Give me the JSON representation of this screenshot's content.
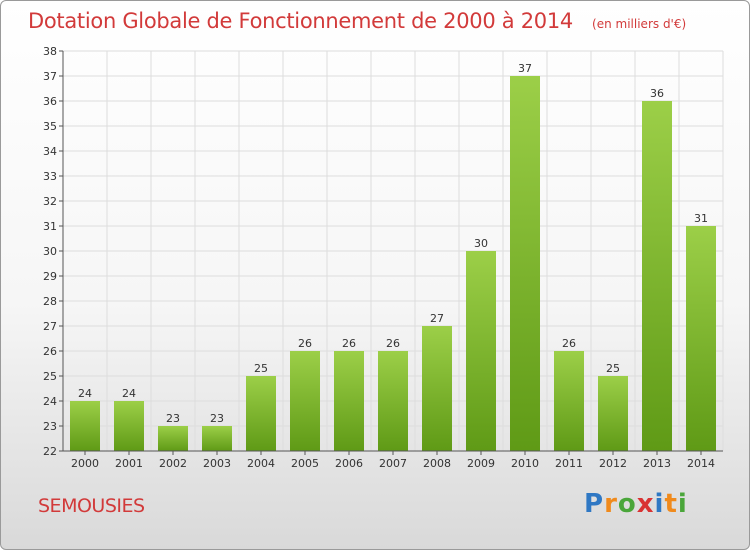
{
  "header": {
    "title": "Dotation Globale de Fonctionnement de 2000 à 2014",
    "subtitle": "(en milliers d'€)"
  },
  "footer": {
    "town": "SEMOUSIES",
    "logo_parts": [
      "P",
      "r",
      "o",
      "x",
      "i",
      "t",
      "i"
    ]
  },
  "colors": {
    "bar_top": "#9ccf48",
    "bar_bottom": "#5f9a16",
    "title": "#d23a3a",
    "grid": "#dddddd"
  },
  "chart_data": {
    "type": "bar",
    "title": "Dotation Globale de Fonctionnement de 2000 à 2014",
    "subtitle": "(en milliers d'€)",
    "categories": [
      "2000",
      "2001",
      "2002",
      "2003",
      "2004",
      "2005",
      "2006",
      "2007",
      "2008",
      "2009",
      "2010",
      "2011",
      "2012",
      "2013",
      "2014"
    ],
    "values": [
      24,
      24,
      23,
      23,
      25,
      26,
      26,
      26,
      27,
      30,
      37,
      26,
      25,
      36,
      31
    ],
    "data_labels": [
      "24",
      "24",
      "23",
      "23",
      "25",
      "26",
      "26",
      "26",
      "27",
      "30",
      "37",
      "26",
      "25",
      "36",
      "31"
    ],
    "ylim": [
      22,
      38
    ],
    "yticks": [
      "22",
      "23",
      "24",
      "25",
      "26",
      "27",
      "28",
      "29",
      "30",
      "31",
      "32",
      "33",
      "34",
      "35",
      "36",
      "37",
      "38"
    ],
    "grid": true,
    "xlabel": "",
    "ylabel": ""
  }
}
